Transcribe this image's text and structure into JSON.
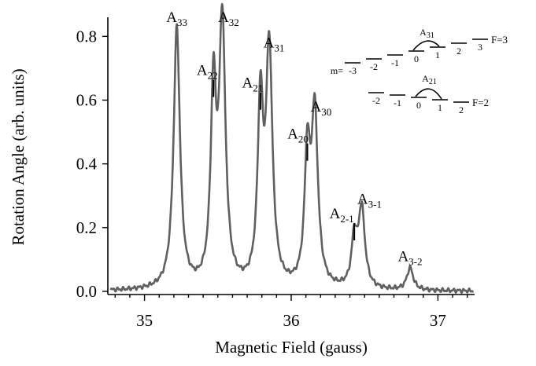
{
  "chart_data": {
    "type": "line",
    "title": "",
    "xlabel": "Magnetic Field (gauss)",
    "ylabel": "Rotation Angle (arb. units)",
    "xlim": [
      34.75,
      37.25
    ],
    "ylim": [
      -0.01,
      0.86
    ],
    "xticks": [
      35,
      36,
      37
    ],
    "xtick_labels": [
      "35",
      "36",
      "37"
    ],
    "yticks": [
      0.0,
      0.2,
      0.4,
      0.6,
      0.8
    ],
    "ytick_labels": [
      "0.0",
      "0.2",
      "0.4",
      "0.6",
      "0.8"
    ],
    "grid": false,
    "line_color": "#606060",
    "baseline": 0.0,
    "peaks": [
      {
        "x": 35.22,
        "height": 0.82,
        "width": 0.026,
        "label": "A",
        "sub": "33"
      },
      {
        "x": 35.47,
        "height": 0.6,
        "width": 0.022,
        "label": "A",
        "sub": "22"
      },
      {
        "x": 35.53,
        "height": 0.82,
        "width": 0.026,
        "label": "A",
        "sub": "32"
      },
      {
        "x": 35.79,
        "height": 0.56,
        "width": 0.022,
        "label": "A",
        "sub": "21"
      },
      {
        "x": 35.85,
        "height": 0.74,
        "width": 0.026,
        "label": "A",
        "sub": "31"
      },
      {
        "x": 36.11,
        "height": 0.4,
        "width": 0.022,
        "label": "A",
        "sub": "20"
      },
      {
        "x": 36.16,
        "height": 0.54,
        "width": 0.026,
        "label": "A",
        "sub": "30"
      },
      {
        "x": 36.43,
        "height": 0.15,
        "width": 0.022,
        "label": "A",
        "sub": "2-1"
      },
      {
        "x": 36.48,
        "height": 0.25,
        "width": 0.026,
        "label": "A",
        "sub": "3-1"
      },
      {
        "x": 36.81,
        "height": 0.07,
        "width": 0.026,
        "label": "A",
        "sub": "3-2"
      }
    ]
  },
  "level_diagram": {
    "f3": {
      "label": "F=3",
      "m_prefix": "m=",
      "levels": [
        "-3",
        "-2",
        "-1",
        "0",
        "1",
        "2",
        "3"
      ],
      "transition": "A",
      "transition_sub": "31"
    },
    "f2": {
      "label": "F=2",
      "levels": [
        "-2",
        "-1",
        "0",
        "1",
        "2"
      ],
      "transition": "A",
      "transition_sub": "21"
    }
  }
}
